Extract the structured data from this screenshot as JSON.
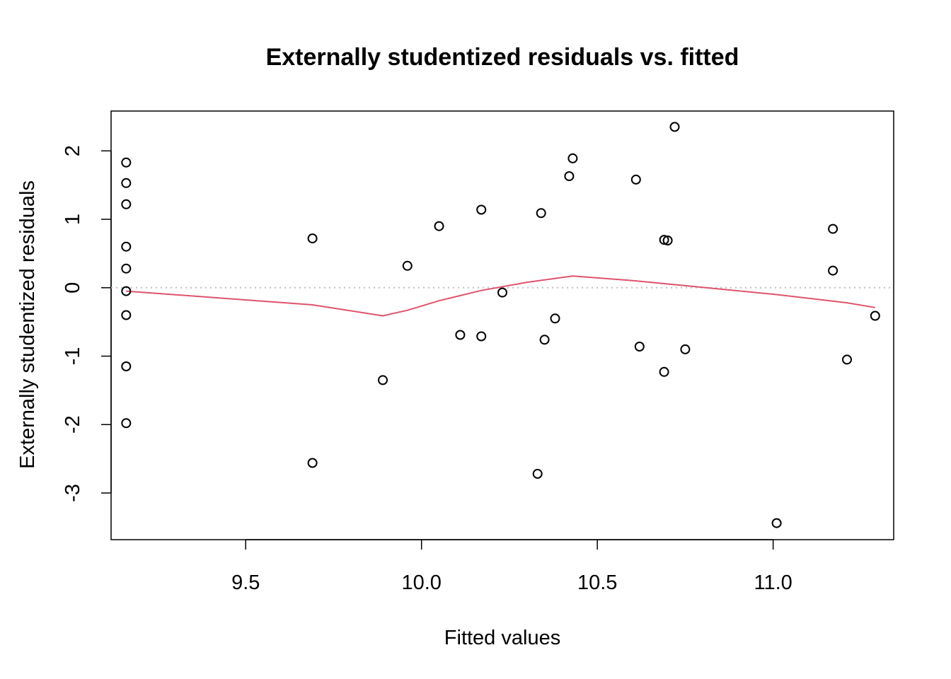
{
  "chart_data": {
    "type": "scatter",
    "title": "Externally studentized residuals vs. fitted",
    "xlabel": "Fitted values",
    "ylabel": "Externally studentized residuals",
    "xlim": [
      9.16,
      11.3
    ],
    "ylim": [
      -3.45,
      2.35
    ],
    "x_ticks": [
      9.5,
      10.0,
      10.5,
      11.0
    ],
    "x_tick_labels": [
      "9.5",
      "10.0",
      "10.5",
      "11.0"
    ],
    "y_ticks": [
      -3,
      -2,
      -1,
      0,
      1,
      2
    ],
    "y_tick_labels": [
      "-3",
      "-2",
      "-1",
      "0",
      "1",
      "2"
    ],
    "reference_line": {
      "y": 0,
      "style": "dotted",
      "color": "#bebebe"
    },
    "points_color": "#000000",
    "smooth_color": "#df536b",
    "points": [
      {
        "x": 9.16,
        "y": 1.83
      },
      {
        "x": 9.16,
        "y": 1.53
      },
      {
        "x": 9.16,
        "y": 1.22
      },
      {
        "x": 9.16,
        "y": 0.6
      },
      {
        "x": 9.16,
        "y": 0.28
      },
      {
        "x": 9.16,
        "y": -0.05
      },
      {
        "x": 9.16,
        "y": -0.4
      },
      {
        "x": 9.16,
        "y": -1.15
      },
      {
        "x": 9.16,
        "y": -1.98
      },
      {
        "x": 9.69,
        "y": 0.72
      },
      {
        "x": 9.69,
        "y": -2.56
      },
      {
        "x": 9.89,
        "y": -1.35
      },
      {
        "x": 9.96,
        "y": 0.32
      },
      {
        "x": 10.05,
        "y": 0.9
      },
      {
        "x": 10.11,
        "y": -0.69
      },
      {
        "x": 10.17,
        "y": 1.14
      },
      {
        "x": 10.17,
        "y": -0.71
      },
      {
        "x": 10.23,
        "y": -0.07
      },
      {
        "x": 10.33,
        "y": -2.72
      },
      {
        "x": 10.34,
        "y": 1.09
      },
      {
        "x": 10.35,
        "y": -0.76
      },
      {
        "x": 10.38,
        "y": -0.45
      },
      {
        "x": 10.42,
        "y": 1.63
      },
      {
        "x": 10.43,
        "y": 1.89
      },
      {
        "x": 10.61,
        "y": 1.58
      },
      {
        "x": 10.62,
        "y": -0.86
      },
      {
        "x": 10.69,
        "y": 0.7
      },
      {
        "x": 10.69,
        "y": -1.23
      },
      {
        "x": 10.7,
        "y": 0.69
      },
      {
        "x": 10.72,
        "y": 2.35
      },
      {
        "x": 10.75,
        "y": -0.9
      },
      {
        "x": 11.01,
        "y": -3.44
      },
      {
        "x": 11.17,
        "y": 0.86
      },
      {
        "x": 11.17,
        "y": 0.25
      },
      {
        "x": 11.21,
        "y": -1.05
      },
      {
        "x": 11.29,
        "y": -0.41
      }
    ],
    "smooth_line": [
      {
        "x": 9.16,
        "y": -0.05
      },
      {
        "x": 9.69,
        "y": -0.25
      },
      {
        "x": 9.89,
        "y": -0.41
      },
      {
        "x": 9.96,
        "y": -0.33
      },
      {
        "x": 10.05,
        "y": -0.19
      },
      {
        "x": 10.17,
        "y": -0.04
      },
      {
        "x": 10.3,
        "y": 0.08
      },
      {
        "x": 10.43,
        "y": 0.17
      },
      {
        "x": 10.61,
        "y": 0.1
      },
      {
        "x": 10.75,
        "y": 0.03
      },
      {
        "x": 11.01,
        "y": -0.1
      },
      {
        "x": 11.21,
        "y": -0.22
      },
      {
        "x": 11.29,
        "y": -0.29
      }
    ]
  }
}
